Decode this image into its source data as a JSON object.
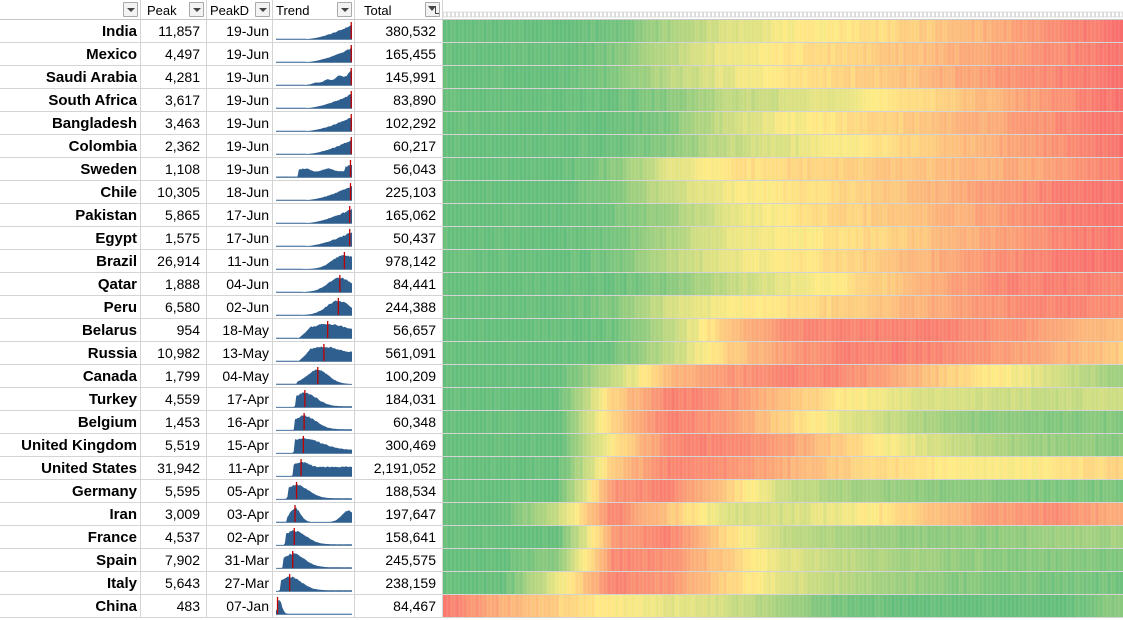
{
  "headers": {
    "country": "",
    "peak": "Peak",
    "peakd": "PeakD",
    "trend": "Trend",
    "total": "Total"
  },
  "colors": {
    "grid": "#d4d4d4",
    "sparkline": "#2f5f8f",
    "peak_marker": "#c00000",
    "scale_low": "#63be7b",
    "scale_mid": "#ffeb84",
    "scale_high": "#f8696b"
  },
  "icons": [
    "filter-dropdown-icon",
    "filter-active-icon"
  ],
  "rows": [
    {
      "country": "India",
      "peak": "11,857",
      "peakd": "19-Jun",
      "total": "380,532",
      "shape": "late",
      "peak_pos": 0.99,
      "heat": [
        0.0,
        0.0,
        0.0,
        0.05,
        0.22,
        0.38,
        0.47,
        0.52,
        0.58,
        0.66,
        0.76,
        0.88,
        0.97
      ]
    },
    {
      "country": "Mexico",
      "peak": "4,497",
      "peakd": "19-Jun",
      "total": "165,455",
      "shape": "late",
      "peak_pos": 0.99,
      "heat": [
        0.0,
        0.0,
        0.0,
        0.08,
        0.28,
        0.45,
        0.52,
        0.58,
        0.64,
        0.72,
        0.8,
        0.88,
        0.95
      ]
    },
    {
      "country": "Saudi Arabia",
      "peak": "4,281",
      "peakd": "19-Jun",
      "total": "145,991",
      "shape": "late_wavy",
      "peak_pos": 0.99,
      "heat": [
        0.0,
        0.0,
        0.0,
        0.08,
        0.28,
        0.42,
        0.52,
        0.58,
        0.64,
        0.74,
        0.84,
        0.9,
        0.96
      ]
    },
    {
      "country": "South Africa",
      "peak": "3,617",
      "peakd": "19-Jun",
      "total": "83,890",
      "shape": "late",
      "peak_pos": 0.99,
      "heat": [
        0.0,
        0.0,
        0.0,
        0.02,
        0.12,
        0.28,
        0.36,
        0.44,
        0.52,
        0.62,
        0.74,
        0.86,
        0.97
      ]
    },
    {
      "country": "Bangladesh",
      "peak": "3,463",
      "peakd": "19-Jun",
      "total": "102,292",
      "shape": "late",
      "peak_pos": 0.99,
      "heat": [
        0.0,
        0.0,
        0.0,
        0.0,
        0.1,
        0.34,
        0.46,
        0.54,
        0.6,
        0.7,
        0.78,
        0.88,
        0.96
      ]
    },
    {
      "country": "Colombia",
      "peak": "2,362",
      "peakd": "19-Jun",
      "total": "60,217",
      "shape": "late",
      "peak_pos": 0.99,
      "heat": [
        0.0,
        0.0,
        0.0,
        0.02,
        0.12,
        0.3,
        0.4,
        0.48,
        0.56,
        0.66,
        0.76,
        0.86,
        0.97
      ]
    },
    {
      "country": "Sweden",
      "peak": "1,108",
      "peakd": "19-Jun",
      "total": "56,043",
      "shape": "plateau_late",
      "peak_pos": 0.98,
      "heat": [
        0.0,
        0.0,
        0.0,
        0.12,
        0.4,
        0.52,
        0.58,
        0.6,
        0.64,
        0.68,
        0.74,
        0.8,
        0.92
      ]
    },
    {
      "country": "Chile",
      "peak": "10,305",
      "peakd": "18-Jun",
      "total": "225,103",
      "shape": "late",
      "peak_pos": 0.98,
      "heat": [
        0.0,
        0.0,
        0.0,
        0.1,
        0.34,
        0.46,
        0.52,
        0.58,
        0.64,
        0.74,
        0.84,
        0.92,
        0.96
      ]
    },
    {
      "country": "Pakistan",
      "peak": "5,865",
      "peakd": "17-Jun",
      "total": "165,062",
      "shape": "late",
      "peak_pos": 0.97,
      "heat": [
        0.0,
        0.0,
        0.0,
        0.06,
        0.2,
        0.4,
        0.5,
        0.58,
        0.64,
        0.72,
        0.82,
        0.92,
        0.96
      ]
    },
    {
      "country": "Egypt",
      "peak": "1,575",
      "peakd": "17-Jun",
      "total": "50,437",
      "shape": "late",
      "peak_pos": 0.97,
      "heat": [
        0.0,
        0.0,
        0.0,
        0.06,
        0.24,
        0.42,
        0.48,
        0.54,
        0.6,
        0.7,
        0.8,
        0.9,
        0.96
      ]
    },
    {
      "country": "Brazil",
      "peak": "26,914",
      "peakd": "11-Jun",
      "total": "978,142",
      "shape": "late_peak",
      "peak_pos": 0.9,
      "heat": [
        0.0,
        0.0,
        0.0,
        0.06,
        0.28,
        0.42,
        0.5,
        0.58,
        0.66,
        0.76,
        0.86,
        0.94,
        0.96
      ]
    },
    {
      "country": "Qatar",
      "peak": "1,888",
      "peakd": "04-Jun",
      "total": "84,441",
      "shape": "late_peak",
      "peak_pos": 0.84,
      "heat": [
        0.0,
        0.0,
        0.0,
        0.02,
        0.12,
        0.3,
        0.42,
        0.52,
        0.64,
        0.78,
        0.9,
        0.92,
        0.9
      ]
    },
    {
      "country": "Peru",
      "peak": "6,580",
      "peakd": "02-Jun",
      "total": "244,388",
      "shape": "late_peak",
      "peak_pos": 0.82,
      "heat": [
        0.0,
        0.0,
        0.0,
        0.1,
        0.36,
        0.48,
        0.54,
        0.6,
        0.68,
        0.78,
        0.86,
        0.9,
        0.86
      ]
    },
    {
      "country": "Belarus",
      "peak": "954",
      "peakd": "18-May",
      "total": "56,657",
      "shape": "mid_plateau",
      "peak_pos": 0.68,
      "heat": [
        0.0,
        0.0,
        0.0,
        0.04,
        0.28,
        0.64,
        0.86,
        0.9,
        0.92,
        0.9,
        0.84,
        0.76,
        0.66
      ]
    },
    {
      "country": "Russia",
      "peak": "10,982",
      "peakd": "13-May",
      "total": "561,091",
      "shape": "mid_plateau",
      "peak_pos": 0.63,
      "heat": [
        0.0,
        0.0,
        0.0,
        0.04,
        0.3,
        0.6,
        0.8,
        0.9,
        0.92,
        0.88,
        0.8,
        0.72,
        0.62
      ]
    },
    {
      "country": "Canada",
      "peak": "1,799",
      "peakd": "04-May",
      "total": "100,209",
      "shape": "mid_peak",
      "peak_pos": 0.55,
      "heat": [
        0.0,
        0.0,
        0.0,
        0.3,
        0.7,
        0.82,
        0.9,
        0.88,
        0.76,
        0.6,
        0.48,
        0.34,
        0.18
      ]
    },
    {
      "country": "Turkey",
      "peak": "4,559",
      "peakd": "17-Apr",
      "total": "184,031",
      "shape": "early_peak",
      "peak_pos": 0.38,
      "heat": [
        0.0,
        0.0,
        0.0,
        0.6,
        0.92,
        0.84,
        0.68,
        0.52,
        0.42,
        0.36,
        0.34,
        0.32,
        0.34
      ]
    },
    {
      "country": "Belgium",
      "peak": "1,453",
      "peakd": "16-Apr",
      "total": "60,348",
      "shape": "early_peak",
      "peak_pos": 0.37,
      "heat": [
        0.0,
        0.0,
        0.0,
        0.62,
        0.92,
        0.82,
        0.6,
        0.44,
        0.3,
        0.16,
        0.12,
        0.1,
        0.1
      ]
    },
    {
      "country": "United Kingdom",
      "peak": "5,519",
      "peakd": "15-Apr",
      "total": "300,469",
      "shape": "early_broad",
      "peak_pos": 0.36,
      "heat": [
        0.0,
        0.0,
        0.0,
        0.52,
        0.88,
        0.9,
        0.8,
        0.62,
        0.46,
        0.32,
        0.22,
        0.16,
        0.12
      ]
    },
    {
      "country": "United States",
      "peak": "31,942",
      "peakd": "11-Apr",
      "total": "2,191,052",
      "shape": "early_plateau",
      "peak_pos": 0.33,
      "heat": [
        0.0,
        0.0,
        0.0,
        0.62,
        0.9,
        0.84,
        0.74,
        0.62,
        0.56,
        0.5,
        0.48,
        0.52,
        0.6
      ]
    },
    {
      "country": "Germany",
      "peak": "5,595",
      "peakd": "05-Apr",
      "total": "188,534",
      "shape": "early_peak",
      "peak_pos": 0.27,
      "heat": [
        0.0,
        0.0,
        0.0,
        0.84,
        0.9,
        0.62,
        0.34,
        0.22,
        0.16,
        0.12,
        0.1,
        0.08,
        0.08
      ]
    },
    {
      "country": "Iran",
      "peak": "3,009",
      "peakd": "03-Apr",
      "total": "197,647",
      "shape": "double_hump",
      "peak_pos": 0.25,
      "heat": [
        0.0,
        0.0,
        0.32,
        0.9,
        0.64,
        0.38,
        0.36,
        0.44,
        0.56,
        0.7,
        0.82,
        0.86,
        0.72
      ]
    },
    {
      "country": "France",
      "peak": "4,537",
      "peakd": "02-Apr",
      "total": "158,641",
      "shape": "early_peak",
      "peak_pos": 0.24,
      "heat": [
        0.0,
        0.0,
        0.0,
        0.82,
        0.9,
        0.56,
        0.32,
        0.22,
        0.16,
        0.14,
        0.14,
        0.18,
        0.2
      ]
    },
    {
      "country": "Spain",
      "peak": "7,902",
      "peakd": "31-Mar",
      "total": "245,575",
      "shape": "early_peak",
      "peak_pos": 0.22,
      "heat": [
        0.0,
        0.0,
        0.14,
        0.88,
        0.86,
        0.62,
        0.42,
        0.3,
        0.22,
        0.16,
        0.12,
        0.1,
        0.1
      ]
    },
    {
      "country": "Italy",
      "peak": "5,643",
      "peakd": "27-Mar",
      "total": "238,159",
      "shape": "early_peak",
      "peak_pos": 0.18,
      "heat": [
        0.0,
        0.0,
        0.42,
        0.9,
        0.82,
        0.6,
        0.4,
        0.28,
        0.18,
        0.12,
        0.08,
        0.06,
        0.06
      ]
    },
    {
      "country": "China",
      "peak": "483",
      "peakd": "07-Jan",
      "total": "84,467",
      "shape": "very_early",
      "peak_pos": 0.02,
      "heat": [
        0.92,
        0.74,
        0.6,
        0.5,
        0.42,
        0.36,
        0.2,
        0.06,
        0.02,
        0.0,
        0.0,
        0.0,
        0.14
      ]
    }
  ]
}
